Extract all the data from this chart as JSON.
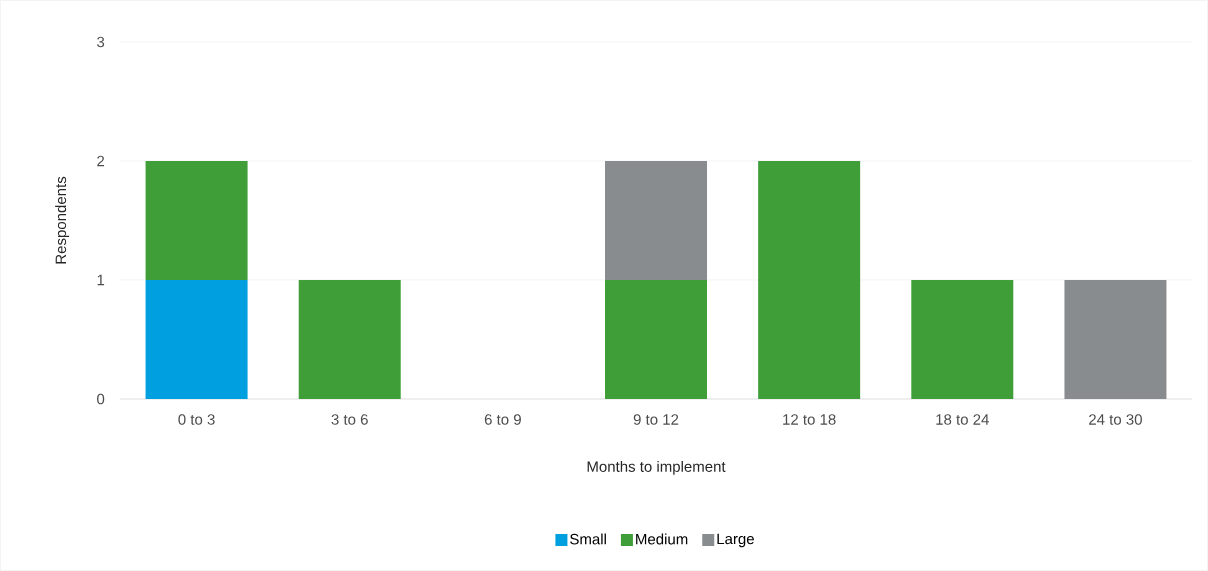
{
  "chart_data": {
    "type": "bar",
    "stacked": true,
    "xlabel": "Months to implement",
    "ylabel": "Respondents",
    "categories": [
      "0 to 3",
      "3 to 6",
      "6 to 9",
      "9 to 12",
      "12 to 18",
      "18 to 24",
      "24 to 30"
    ],
    "series": [
      {
        "name": "Small",
        "color": "#009fe0",
        "values": [
          1,
          0,
          0,
          0,
          0,
          0,
          0
        ]
      },
      {
        "name": "Medium",
        "color": "#3f9e37",
        "values": [
          1,
          1,
          0,
          1,
          2,
          1,
          0
        ]
      },
      {
        "name": "Large",
        "color": "#898c8e",
        "values": [
          0,
          0,
          0,
          1,
          0,
          0,
          1
        ]
      }
    ],
    "ylim": [
      0,
      3
    ],
    "yticks": [
      0,
      1,
      2,
      3
    ],
    "grid": "y",
    "legend": "bottom"
  }
}
